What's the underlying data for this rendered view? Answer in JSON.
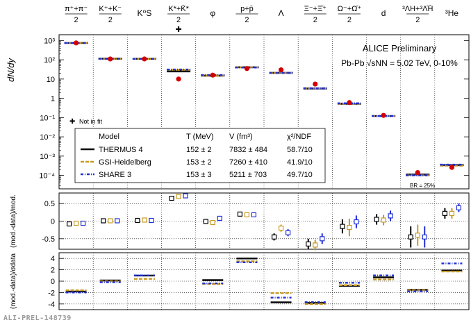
{
  "chart_data": [
    {
      "type": "scatter",
      "panel": "yields",
      "ylabel": "dN/dy",
      "yscale": "log",
      "ylim": [
        2e-05,
        2000
      ],
      "yticks": [
        "10³",
        "10²",
        "10",
        "1",
        "10⁻¹",
        "10⁻²",
        "10⁻³",
        "10⁻⁴"
      ],
      "categories": [
        {
          "top": "π⁺+π⁻",
          "bot": "2"
        },
        {
          "top": "K⁺+K⁻",
          "bot": "2"
        },
        {
          "top": "K⁰S",
          "bot": ""
        },
        {
          "top": "K*+K̄*",
          "bot": "2",
          "note": "✚"
        },
        {
          "top": "φ",
          "bot": ""
        },
        {
          "top": "p+p̄",
          "bot": "2"
        },
        {
          "top": "Λ",
          "bot": ""
        },
        {
          "top": "Ξ⁻+Ξ̄⁺",
          "bot": "2"
        },
        {
          "top": "Ω⁻+Ω̄⁺",
          "bot": "2"
        },
        {
          "top": "d",
          "bot": ""
        },
        {
          "top": "³ΛH+³Λ̄H̄",
          "bot": "2"
        },
        {
          "top": "³He",
          "bot": ""
        }
      ],
      "data": [
        746,
        110,
        110,
        10,
        16,
        35,
        30,
        5.5,
        0.6,
        0.13,
        0.00014,
        0.00026
      ],
      "models": [
        [
          746,
          115,
          113,
          25,
          15,
          41,
          21,
          3.2,
          0.52,
          0.12,
          0.00011,
          0.00034
        ],
        [
          746,
          114,
          112,
          30,
          15,
          41,
          21,
          3.3,
          0.53,
          0.12,
          0.0001,
          0.00032
        ],
        [
          746,
          114,
          112,
          31,
          16,
          40,
          21,
          3.3,
          0.55,
          0.12,
          0.0001,
          0.00036
        ]
      ],
      "series": [
        {
          "name": "THERMUS 4",
          "T": "152 ± 2",
          "V": "7832 ± 484",
          "chi2": "58.7/10"
        },
        {
          "name": "GSI-Heidelberg",
          "T": "153 ± 2",
          "V": "7260 ± 410",
          "chi2": "41.9/10"
        },
        {
          "name": "SHARE 3",
          "T": "153 ± 3",
          "V": "5211 ± 703",
          "chi2": "49.7/10"
        }
      ],
      "legend_headers": {
        "model": "Model",
        "T": "T (MeV)",
        "V": "V (fm³)",
        "chi2": "χ²/NDF"
      },
      "annotations": {
        "line1": "ALICE Preliminary",
        "line2": "Pb-Pb √sNN = 5.02 TeV, 0-10%",
        "not_in_fit": "Not in fit",
        "br": "BR = 25%"
      },
      "colors": {
        "thermus": "#000000",
        "gsi": "#c89a1e",
        "share": "#1f2fd6",
        "data": "#d40000"
      }
    },
    {
      "type": "scatter",
      "panel": "relative-deviation",
      "ylabel": "(mod.-data)/mod.",
      "ylim": [
        -0.8,
        0.8
      ],
      "yticks": [
        0.5,
        0,
        -0.5
      ],
      "series": [
        {
          "name": "THERMUS 4",
          "values": [
            -0.08,
            0.01,
            0.02,
            0.65,
            -0.01,
            0.2,
            -0.45,
            -0.65,
            -0.15,
            0.05,
            -0.45,
            0.22
          ],
          "errors": [
            0.03,
            0.02,
            0.02,
            0.03,
            0.05,
            0.03,
            0.1,
            0.15,
            0.2,
            0.15,
            0.3,
            0.15
          ]
        },
        {
          "name": "GSI-Heidelberg",
          "values": [
            -0.06,
            0.01,
            0.03,
            0.7,
            -0.04,
            0.18,
            -0.2,
            -0.68,
            -0.18,
            0.03,
            -0.4,
            0.22
          ],
          "errors": [
            0.03,
            0.02,
            0.02,
            0.03,
            0.05,
            0.03,
            0.1,
            0.15,
            0.25,
            0.15,
            0.3,
            0.15
          ]
        },
        {
          "name": "SHARE 3",
          "values": [
            -0.06,
            0.01,
            0.02,
            0.72,
            0.08,
            0.18,
            -0.33,
            -0.5,
            -0.02,
            0.15,
            -0.45,
            0.38
          ],
          "errors": [
            0.03,
            0.02,
            0.02,
            0.03,
            0.05,
            0.03,
            0.1,
            0.15,
            0.18,
            0.15,
            0.3,
            0.12
          ]
        }
      ]
    },
    {
      "type": "scatter",
      "panel": "pull",
      "ylabel": "(mod.-data)/σdata",
      "ylim": [
        -5,
        5
      ],
      "yticks": [
        4,
        2,
        0,
        -2,
        -4
      ],
      "series": [
        {
          "name": "THERMUS 4",
          "values": [
            -2.0,
            -0.05,
            0.8,
            0.0,
            3.8,
            -3.9,
            -4.0,
            -1.0,
            0.5,
            -1.7,
            1.7
          ]
        },
        {
          "name": "GSI-Heidelberg",
          "values": [
            -1.6,
            0.0,
            0.4,
            -0.5,
            3.5,
            -2.1,
            -4.0,
            -0.7,
            0.3,
            -1.6,
            1.7
          ]
        },
        {
          "name": "SHARE 3",
          "values": [
            -1.8,
            0.0,
            1.2,
            -0.2,
            3.5,
            -2.7,
            -3.5,
            -0.1,
            1.2,
            -1.6,
            3.3
          ]
        }
      ],
      "categories_index": [
        0,
        1,
        2,
        4,
        5,
        6,
        7,
        8,
        9,
        10,
        11
      ]
    }
  ],
  "watermark": "ALI-PREL-148739"
}
